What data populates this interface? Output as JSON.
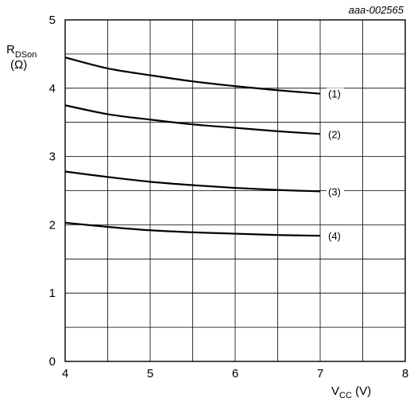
{
  "chart_data": {
    "type": "line",
    "reference_id": "aaa-002565",
    "ylabel": {
      "main": "R",
      "sub": "DSon",
      "unit": "(Ω)"
    },
    "xlabel": {
      "main": "V",
      "sub": "CC",
      "unit": " (V)"
    },
    "xlim": [
      4,
      8
    ],
    "ylim": [
      0,
      5
    ],
    "x_ticks": [
      4,
      5,
      6,
      7,
      8
    ],
    "y_ticks": [
      0,
      1,
      2,
      3,
      4,
      5
    ],
    "x_minor_step": 0.5,
    "y_minor_step": 0.5,
    "grid": true,
    "line_color": "#000000",
    "x": [
      4.0,
      4.5,
      5.0,
      5.5,
      6.0,
      6.5,
      7.0
    ],
    "series": [
      {
        "name": "(1)",
        "values": [
          4.45,
          4.29,
          4.19,
          4.1,
          4.03,
          3.97,
          3.92
        ]
      },
      {
        "name": "(2)",
        "values": [
          3.75,
          3.62,
          3.54,
          3.47,
          3.42,
          3.37,
          3.33
        ]
      },
      {
        "name": "(3)",
        "values": [
          2.78,
          2.7,
          2.63,
          2.58,
          2.54,
          2.51,
          2.49
        ]
      },
      {
        "name": "(4)",
        "values": [
          2.03,
          1.97,
          1.92,
          1.89,
          1.87,
          1.85,
          1.84
        ]
      }
    ]
  }
}
